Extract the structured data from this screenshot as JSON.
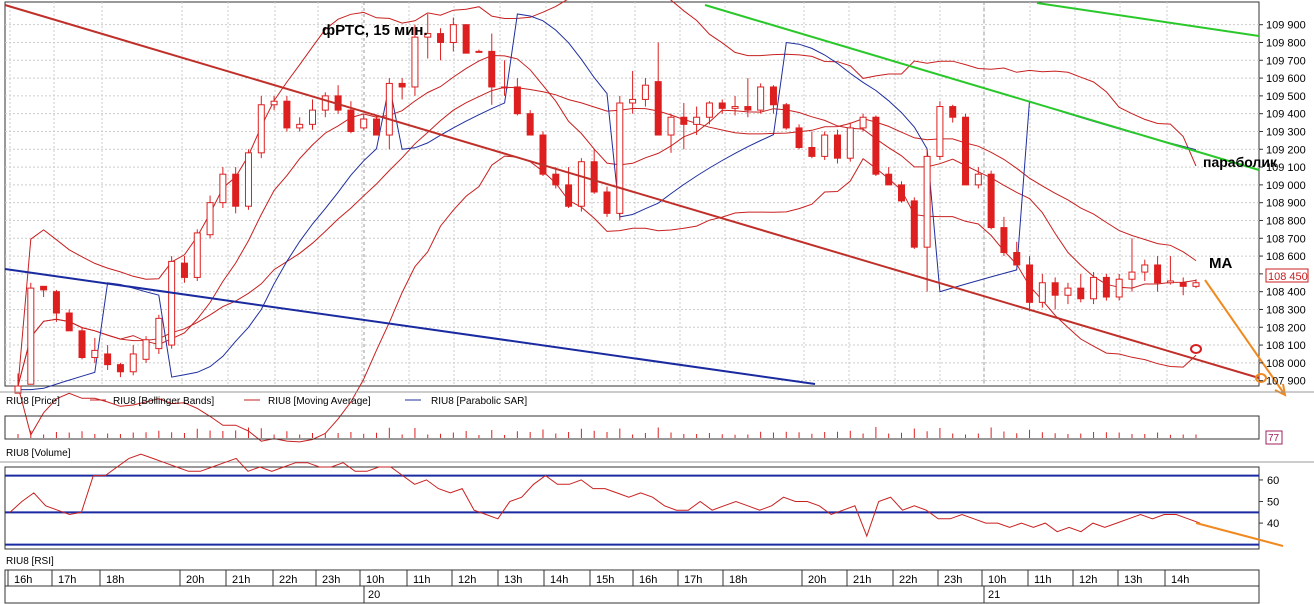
{
  "chart_data": {
    "type": "candlestick",
    "title": "фРТС, 15 мин.",
    "annotations": {
      "sar": "параболик",
      "ma": "МА"
    },
    "colors": {
      "price": "#dd1f1f",
      "bands": "#c82020",
      "ma": "#c82020",
      "sar": "#1f2f9f",
      "trend_red": "#c0302a",
      "trend_blue": "#1a2aa0",
      "trend_green": "#2ac82a",
      "forecast": "#f08a20"
    },
    "price_panel": {
      "y_ticks": [
        "109 900",
        "109 800",
        "109 700",
        "109 600",
        "109 500",
        "109 400",
        "109 300",
        "109 200",
        "109 100",
        "109 000",
        "108 900",
        "108 800",
        "108 700",
        "108 600",
        "108 500",
        "108 400",
        "108 300",
        "108 200",
        "108 100",
        "108 000",
        "107 900"
      ],
      "y_tick_values": [
        109900,
        109800,
        109700,
        109600,
        109500,
        109400,
        109300,
        109200,
        109100,
        109000,
        108900,
        108800,
        108700,
        108600,
        108500,
        108400,
        108300,
        108200,
        108100,
        108000,
        107900
      ],
      "ylim": [
        107870,
        109960
      ],
      "last_price": 108450,
      "last_price_label": "108 450",
      "candles": [
        [
          107830,
          107940,
          107830,
          107870
        ],
        [
          107880,
          108450,
          107880,
          108420
        ],
        [
          108430,
          108420,
          108370,
          108410
        ],
        [
          108400,
          108410,
          108230,
          108280
        ],
        [
          108280,
          108300,
          108180,
          108180
        ],
        [
          108180,
          108200,
          108020,
          108030
        ],
        [
          108030,
          108140,
          108000,
          108070
        ],
        [
          108050,
          108100,
          107960,
          107990
        ],
        [
          107990,
          108000,
          107920,
          107950
        ],
        [
          107950,
          108100,
          107930,
          108050
        ],
        [
          108020,
          108150,
          108000,
          108130
        ],
        [
          108080,
          108270,
          108050,
          108250
        ],
        [
          108100,
          108600,
          108080,
          108570
        ],
        [
          108560,
          108600,
          108450,
          108480
        ],
        [
          108480,
          108750,
          108460,
          108730
        ],
        [
          108720,
          108940,
          108700,
          108900
        ],
        [
          108900,
          109100,
          108870,
          109060
        ],
        [
          109060,
          109100,
          108840,
          108880
        ],
        [
          108880,
          109200,
          108860,
          109180
        ],
        [
          109180,
          109500,
          109150,
          109450
        ],
        [
          109450,
          109500,
          109420,
          109470
        ],
        [
          109470,
          109500,
          109300,
          109320
        ],
        [
          109320,
          109380,
          109300,
          109340
        ],
        [
          109340,
          109480,
          109310,
          109420
        ],
        [
          109420,
          109520,
          109380,
          109500
        ],
        [
          109500,
          109560,
          109400,
          109420
        ],
        [
          109420,
          109470,
          109290,
          109300
        ],
        [
          109320,
          109400,
          109310,
          109370
        ],
        [
          109370,
          109390,
          109280,
          109280
        ],
        [
          109280,
          109600,
          109200,
          109570
        ],
        [
          109570,
          109600,
          109480,
          109550
        ],
        [
          109550,
          109900,
          109500,
          109830
        ],
        [
          109830,
          109960,
          109710,
          109850
        ],
        [
          109850,
          109880,
          109700,
          109800
        ],
        [
          109800,
          109940,
          109750,
          109900
        ],
        [
          109900,
          109900,
          109740,
          109740
        ],
        [
          109750,
          109760,
          109750,
          109750
        ],
        [
          109750,
          109850,
          109450,
          109550
        ],
        [
          109550,
          109700,
          109500,
          109550
        ],
        [
          109550,
          109600,
          109390,
          109400
        ],
        [
          109400,
          109420,
          109280,
          109280
        ],
        [
          109280,
          109300,
          109050,
          109060
        ],
        [
          109060,
          109100,
          108980,
          109000
        ],
        [
          109000,
          109100,
          108870,
          108880
        ],
        [
          108880,
          109150,
          108850,
          109130
        ],
        [
          109130,
          109200,
          108950,
          108960
        ],
        [
          108960,
          108990,
          108820,
          108840
        ],
        [
          108840,
          109500,
          108800,
          109460
        ],
        [
          109460,
          109640,
          109400,
          109480
        ],
        [
          109480,
          109600,
          109440,
          109560
        ],
        [
          109580,
          109800,
          109280,
          109280
        ],
        [
          109280,
          109400,
          109180,
          109380
        ],
        [
          109380,
          109460,
          109200,
          109340
        ],
        [
          109340,
          109440,
          109280,
          109380
        ],
        [
          109380,
          109470,
          109340,
          109460
        ],
        [
          109460,
          109480,
          109400,
          109430
        ],
        [
          109430,
          109500,
          109390,
          109440
        ],
        [
          109440,
          109600,
          109380,
          109420
        ],
        [
          109420,
          109570,
          109400,
          109550
        ],
        [
          109550,
          109560,
          109400,
          109450
        ],
        [
          109450,
          109460,
          109310,
          109320
        ],
        [
          109320,
          109340,
          109200,
          109210
        ],
        [
          109210,
          109300,
          109150,
          109160
        ],
        [
          109160,
          109300,
          109140,
          109280
        ],
        [
          109280,
          109310,
          109120,
          109150
        ],
        [
          109150,
          109350,
          109130,
          109320
        ],
        [
          109320,
          109400,
          109300,
          109380
        ],
        [
          109380,
          109390,
          109050,
          109060
        ],
        [
          109060,
          109100,
          109000,
          109000
        ],
        [
          109000,
          109020,
          108900,
          108910
        ],
        [
          108910,
          108930,
          108640,
          108650
        ],
        [
          108650,
          109200,
          108400,
          109160
        ],
        [
          109160,
          109470,
          109140,
          109440
        ],
        [
          109440,
          109450,
          109350,
          109380
        ],
        [
          109380,
          109400,
          109000,
          109000
        ],
        [
          109000,
          109100,
          108980,
          109060
        ],
        [
          109060,
          109080,
          108750,
          108760
        ],
        [
          108760,
          108820,
          108600,
          108620
        ],
        [
          108620,
          108680,
          108550,
          108550
        ],
        [
          108550,
          108600,
          108290,
          108340
        ],
        [
          108340,
          108500,
          108310,
          108450
        ],
        [
          108450,
          108480,
          108300,
          108380
        ],
        [
          108380,
          108450,
          108330,
          108420
        ],
        [
          108420,
          108500,
          108340,
          108360
        ],
        [
          108360,
          108510,
          108330,
          108480
        ],
        [
          108480,
          108500,
          108350,
          108370
        ],
        [
          108370,
          108500,
          108350,
          108470
        ],
        [
          108470,
          108700,
          108400,
          108510
        ],
        [
          108510,
          108580,
          108460,
          108550
        ],
        [
          108550,
          108600,
          108400,
          108450
        ],
        [
          108450,
          108600,
          108440,
          108460
        ],
        [
          108450,
          108480,
          108380,
          108430
        ],
        [
          108430,
          108470,
          108420,
          108450
        ]
      ]
    },
    "volume_panel": {
      "label": "RIU8 [Volume]",
      "last_value": "77"
    },
    "rsi_panel": {
      "label": "RIU8 [RSI]",
      "y_ticks": [
        "60",
        "50",
        "40"
      ],
      "y_tick_values": [
        60,
        50,
        40
      ],
      "ylim": [
        28,
        66
      ],
      "levels": [
        62,
        45,
        30
      ],
      "values": [
        45,
        50,
        54,
        48,
        46,
        44,
        45,
        62,
        62,
        66,
        70,
        72,
        70,
        68,
        66,
        64,
        64,
        66,
        68,
        70,
        64,
        66,
        64,
        66,
        68,
        68,
        66,
        66,
        68,
        64,
        64,
        66,
        66,
        62,
        58,
        60,
        56,
        54,
        56,
        46,
        44,
        42,
        50,
        52,
        58,
        62,
        58,
        58,
        60,
        56,
        56,
        54,
        52,
        54,
        52,
        48,
        46,
        46,
        50,
        46,
        48,
        50,
        48,
        46,
        48,
        52,
        50,
        50,
        48,
        44,
        46,
        48,
        34,
        50,
        52,
        46,
        48,
        46,
        42,
        42,
        44,
        42,
        40,
        40,
        38,
        40,
        38,
        40,
        36,
        38,
        36,
        40,
        38,
        40,
        42,
        44,
        42,
        44,
        44,
        42,
        40
      ]
    },
    "x_ticks": [
      "16h",
      "17h",
      "18h",
      "20h",
      "21h",
      "22h",
      "23h",
      "10h",
      "11h",
      "12h",
      "13h",
      "14h",
      "15h",
      "16h",
      "17h",
      "18h",
      "20h",
      "21h",
      "22h",
      "23h",
      "10h",
      "11h",
      "12h",
      "13h",
      "14h"
    ],
    "day_labels": [
      "20",
      "21"
    ],
    "legend": [
      "RIU8 [Price]",
      "RIU8 [Bollinger Bands]",
      "RIU8 [Moving Average]",
      "RIU8 [Parabolic SAR]"
    ]
  }
}
